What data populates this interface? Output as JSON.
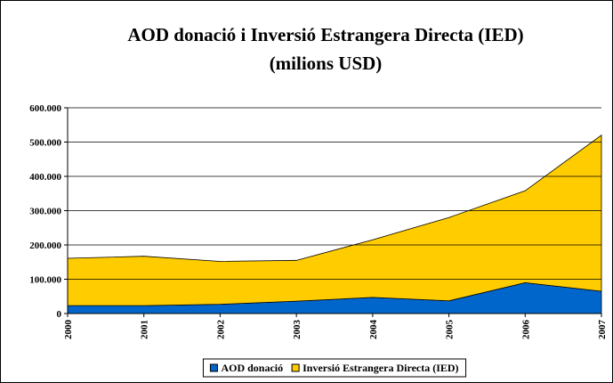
{
  "chart_data": {
    "type": "stacked_area",
    "title": "AOD donació i Inversió Estrangera Directa (IED)",
    "subtitle": "(milions USD)",
    "categories": [
      "2000",
      "2001",
      "2002",
      "2003",
      "2004",
      "2005",
      "2006",
      "2007"
    ],
    "series": [
      {
        "name": "AOD donació",
        "color": "#0066cc",
        "values": [
          23000,
          23000,
          27000,
          36000,
          47000,
          37000,
          90000,
          65000
        ]
      },
      {
        "name": "Inversió Estrangera Directa (IED)",
        "color": "#ffcc00",
        "values": [
          138000,
          144000,
          125000,
          119000,
          168000,
          243000,
          268000,
          455000
        ]
      }
    ],
    "ylim": [
      0,
      600000
    ],
    "yticks": [
      0,
      {
        "value": 100000,
        "label": "100.000"
      },
      {
        "value": 200000,
        "label": "200.000"
      },
      {
        "value": 300000,
        "label": "300.000"
      },
      {
        "value": 400000,
        "label": "400.000"
      },
      {
        "value": 500000,
        "label": "500.000"
      },
      {
        "value": 600000,
        "label": "600.000"
      }
    ],
    "grid": true,
    "legend": "bottom"
  }
}
